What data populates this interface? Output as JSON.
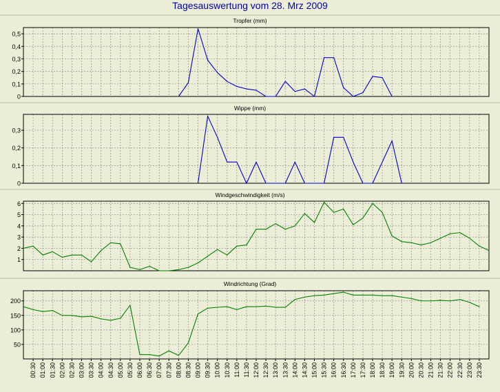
{
  "page": {
    "title": "Tagesauswertung vom 28. Mrz 2009"
  },
  "colors": {
    "background": "#ECEED8",
    "blue_series": "#0000CC",
    "green_series": "#008000",
    "grid": "#888888"
  },
  "chart_data": [
    {
      "type": "line",
      "title": "Tropfer (mm)",
      "ylim": [
        0,
        0.55
      ],
      "yticks": [
        0,
        0.1,
        0.2,
        0.3,
        0.4,
        0.5
      ],
      "ytick_labels": [
        "0",
        "0,1",
        "0,2",
        "0,3",
        "0,4",
        "0,5"
      ],
      "grid": true,
      "series": [
        {
          "color": "#0000CC",
          "values": [
            null,
            null,
            null,
            null,
            null,
            null,
            null,
            null,
            null,
            null,
            null,
            null,
            null,
            null,
            null,
            null,
            0,
            0.11,
            0.54,
            0.29,
            0.19,
            0.12,
            0.08,
            0.06,
            0.05,
            0,
            0,
            0.12,
            0.04,
            0.06,
            0,
            0.31,
            0.31,
            0.07,
            0,
            0.03,
            0.16,
            0.15,
            0,
            null,
            null,
            null,
            null,
            null,
            null,
            null,
            null,
            null,
            null,
            null
          ]
        }
      ]
    },
    {
      "type": "line",
      "title": "Wippe (mm)",
      "ylim": [
        0,
        0.39
      ],
      "yticks": [
        0,
        0.1,
        0.2,
        0.3
      ],
      "ytick_labels": [
        "0",
        "0,1",
        "0,2",
        "0,3"
      ],
      "grid": true,
      "series": [
        {
          "color": "#0000CC",
          "values": [
            null,
            null,
            null,
            null,
            null,
            null,
            null,
            null,
            null,
            null,
            null,
            null,
            null,
            null,
            null,
            null,
            null,
            null,
            0,
            0.38,
            0.26,
            0.12,
            0.12,
            0,
            0.12,
            0,
            0,
            0,
            0.12,
            0,
            0,
            0,
            0.26,
            0.26,
            0.12,
            0,
            0,
            0.12,
            0.24,
            0,
            null,
            null,
            null,
            null,
            null,
            null,
            null,
            null,
            null,
            null
          ]
        }
      ]
    },
    {
      "type": "line",
      "title": "Windgeschwindigkeit (m/s)",
      "ylim": [
        0,
        6.2
      ],
      "yticks": [
        1,
        2,
        3,
        4,
        5,
        6
      ],
      "ytick_labels": [
        "1",
        "2",
        "3",
        "4",
        "5",
        "6"
      ],
      "grid": true,
      "series": [
        {
          "color": "#008000",
          "values": [
            2.0,
            2.2,
            1.4,
            1.7,
            1.2,
            1.4,
            1.4,
            0.8,
            1.8,
            2.5,
            2.4,
            0.3,
            0.1,
            0.4,
            0.0,
            0.0,
            0.1,
            0.3,
            0.7,
            1.3,
            1.9,
            1.4,
            2.2,
            2.3,
            3.7,
            3.7,
            4.2,
            3.7,
            4.0,
            5.1,
            4.3,
            6.1,
            5.2,
            5.5,
            4.1,
            4.7,
            6.0,
            5.2,
            3.1,
            2.6,
            2.5,
            2.3,
            2.5,
            2.9,
            3.3,
            3.4,
            2.9,
            2.2,
            1.8
          ]
        }
      ]
    },
    {
      "type": "line",
      "title": "Windrichtung (Grad)",
      "ylim": [
        0,
        235
      ],
      "yticks": [
        50,
        100,
        150,
        200
      ],
      "ytick_labels": [
        "50",
        "100",
        "150",
        "200"
      ],
      "grid": true,
      "series": [
        {
          "color": "#008000",
          "values": [
            180,
            170,
            163,
            167,
            150,
            150,
            145,
            147,
            138,
            133,
            140,
            185,
            15,
            15,
            10,
            28,
            12,
            55,
            155,
            175,
            178,
            180,
            170,
            180,
            180,
            182,
            178,
            178,
            205,
            213,
            218,
            220,
            225,
            230,
            220,
            220,
            220,
            218,
            218,
            213,
            208,
            200,
            200,
            202,
            200,
            205,
            195,
            180
          ]
        }
      ]
    }
  ],
  "x_axis": {
    "tick_labels": [
      "00:30",
      "01:00",
      "01:30",
      "02:00",
      "02:30",
      "03:00",
      "03:30",
      "04:00",
      "04:30",
      "05:00",
      "05:30",
      "06:00",
      "06:30",
      "07:00",
      "07:30",
      "08:00",
      "08:30",
      "09:00",
      "09:30",
      "10:00",
      "10:30",
      "11:00",
      "11:30",
      "12:00",
      "12:30",
      "13:00",
      "13:30",
      "14:00",
      "14:30",
      "15:00",
      "15:30",
      "16:00",
      "16:30",
      "17:00",
      "17:30",
      "18:00",
      "18:30",
      "19:00",
      "19:30",
      "20:00",
      "20:30",
      "21:00",
      "21:30",
      "22:00",
      "22:30",
      "23:00",
      "23:30"
    ]
  }
}
